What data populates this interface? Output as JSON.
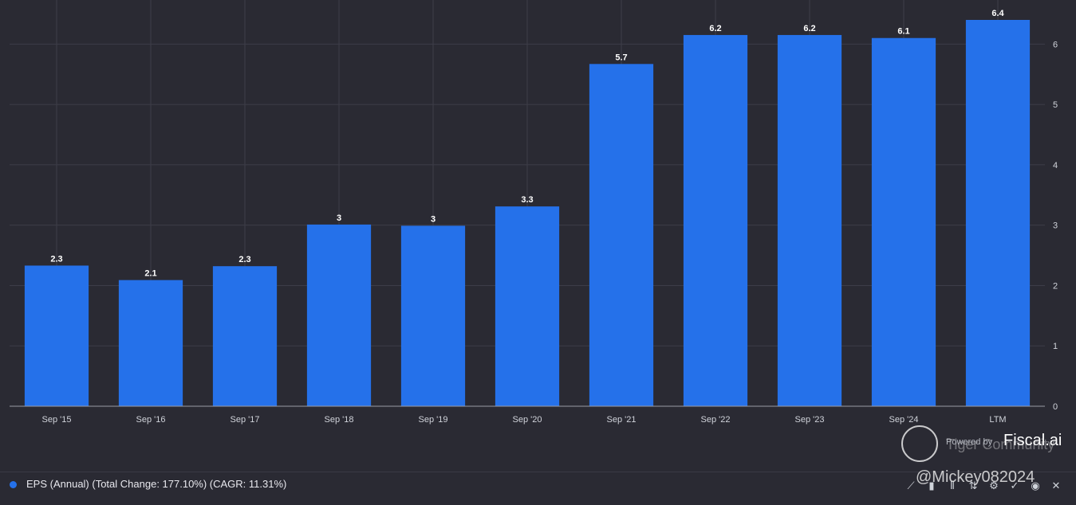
{
  "chart_data": {
    "type": "bar",
    "categories": [
      "Sep '15",
      "Sep '16",
      "Sep '17",
      "Sep '18",
      "Sep '19",
      "Sep '20",
      "Sep '21",
      "Sep '22",
      "Sep '23",
      "Sep '24",
      "LTM"
    ],
    "values": [
      2.33,
      2.09,
      2.32,
      3.01,
      2.99,
      3.31,
      5.67,
      6.15,
      6.15,
      6.1,
      6.4
    ],
    "data_labels": [
      "2.3",
      "2.1",
      "2.3",
      "3",
      "3",
      "3.3",
      "5.7",
      "6.2",
      "6.2",
      "6.1",
      "6.4"
    ],
    "y_ticks": [
      0,
      1,
      2,
      3,
      4,
      5,
      6
    ],
    "ylim": [
      0,
      6.4
    ],
    "y_axis_side": "right",
    "grid": true,
    "series_name": "EPS (Annual) (Total Change: 177.10%) (CAGR: 11.31%)",
    "bar_color": "#2571ea",
    "background": "#2a2a33",
    "grid_color": "#3d3d48"
  },
  "branding": {
    "powered_by": "Powered by",
    "name": "Fiscal.ai",
    "overlay": "Tiger Community",
    "watermark": "@Mickey082024"
  },
  "toolbar": {
    "icons": [
      "line-chart-icon",
      "bar-chart-icon",
      "columns-icon",
      "sort-icon",
      "settings-icon",
      "check-icon",
      "eye-icon",
      "close-icon"
    ],
    "glyphs": [
      "⟋",
      "▮",
      "⫴",
      "⇅",
      "⚙",
      "✓",
      "◉",
      "✕"
    ]
  }
}
